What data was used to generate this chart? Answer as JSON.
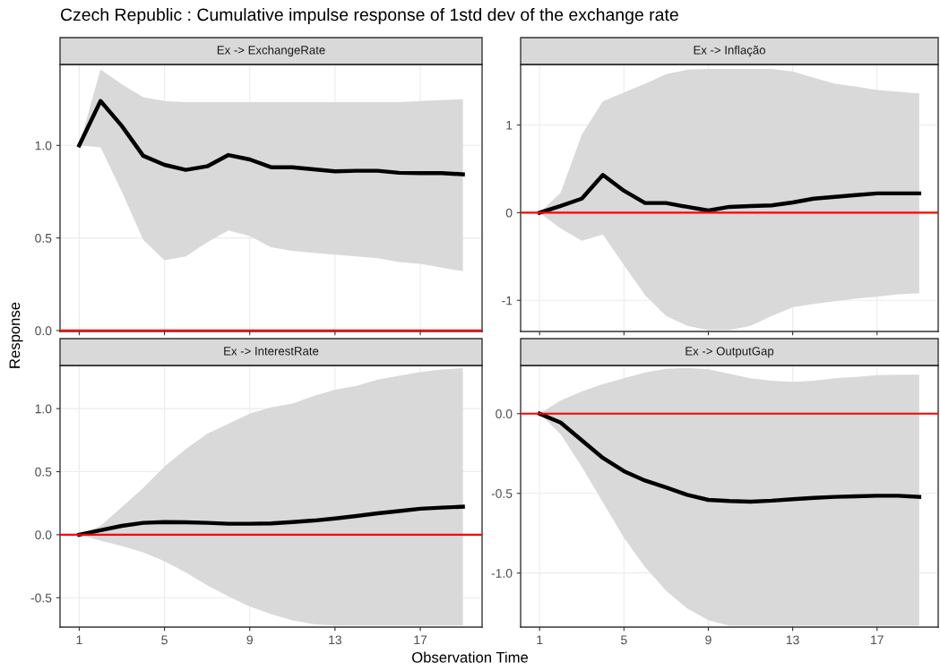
{
  "chart_data": [
    {
      "type": "line",
      "title": "Ex -> ExchangeRate",
      "ylabel": "Response",
      "annotations": [
        "Czech Republic : Cumulative impulse response of 1std dev of the exchange rate"
      ],
      "x": [
        1,
        2,
        3,
        4,
        5,
        6,
        7,
        8,
        9,
        10,
        11,
        12,
        13,
        14,
        15,
        16,
        17,
        18,
        19
      ],
      "xlim": [
        0.1,
        19.9
      ],
      "xticks": [
        1,
        5,
        9,
        13,
        17
      ],
      "ylim": [
        -0.005,
        1.437
      ],
      "yticks": [
        {
          "value": 0,
          "label": "0.0"
        },
        {
          "value": 0.5,
          "label": "0.5"
        },
        {
          "value": 1,
          "label": "1.0"
        }
      ],
      "tick_labels": "y",
      "grid": true,
      "series": [
        {
          "color": "#000000",
          "values": [
            1.0,
            1.24,
            1.105,
            0.944,
            0.895,
            0.868,
            0.887,
            0.948,
            0.924,
            0.882,
            0.882,
            0.871,
            0.86,
            0.863,
            0.863,
            0.852,
            0.85,
            0.85,
            0.844
          ],
          "upper": [
            1.0,
            1.41,
            1.33,
            1.26,
            1.24,
            1.234,
            1.234,
            1.234,
            1.234,
            1.234,
            1.234,
            1.234,
            1.234,
            1.234,
            1.234,
            1.234,
            1.24,
            1.245,
            1.25
          ],
          "lower": [
            1.0,
            0.99,
            0.75,
            0.49,
            0.38,
            0.4,
            0.476,
            0.54,
            0.51,
            0.45,
            0.43,
            0.42,
            0.41,
            0.4,
            0.39,
            0.37,
            0.36,
            0.34,
            0.32
          ]
        }
      ],
      "ref_lines": [
        {
          "axis": "y",
          "value": 0,
          "color": "#ff0000"
        }
      ]
    },
    {
      "type": "line",
      "title": "Ex -> Inflação",
      "x": [
        1,
        2,
        3,
        4,
        5,
        6,
        7,
        8,
        9,
        10,
        11,
        12,
        13,
        14,
        15,
        16,
        17,
        18,
        19
      ],
      "xlim": [
        0.1,
        19.9
      ],
      "xticks": [
        1,
        5,
        9,
        13,
        17
      ],
      "ylim": [
        -1.355,
        1.69
      ],
      "yticks": [
        -1,
        0,
        1
      ],
      "tick_labels": "y",
      "grid": true,
      "series": [
        {
          "color": "#000000",
          "values": [
            0,
            0.076,
            0.16,
            0.43,
            0.25,
            0.11,
            0.11,
            0.066,
            0.024,
            0.066,
            0.076,
            0.083,
            0.117,
            0.16,
            0.18,
            0.2,
            0.22,
            0.22,
            0.22
          ],
          "upper": [
            0,
            0.23,
            0.89,
            1.27,
            1.37,
            1.47,
            1.58,
            1.63,
            1.64,
            1.64,
            1.64,
            1.64,
            1.61,
            1.54,
            1.47,
            1.44,
            1.4,
            1.38,
            1.36
          ],
          "lower": [
            0,
            -0.18,
            -0.32,
            -0.25,
            -0.6,
            -0.94,
            -1.18,
            -1.29,
            -1.34,
            -1.34,
            -1.29,
            -1.18,
            -1.08,
            -1.04,
            -1.01,
            -0.98,
            -0.96,
            -0.93,
            -0.92
          ]
        }
      ],
      "ref_lines": [
        {
          "axis": "y",
          "value": 0,
          "color": "#ff0000"
        }
      ]
    },
    {
      "type": "line",
      "title": "Ex -> InterestRate",
      "xlabel": "Observation Time",
      "x": [
        1,
        2,
        3,
        4,
        5,
        6,
        7,
        8,
        9,
        10,
        11,
        12,
        13,
        14,
        15,
        16,
        17,
        18,
        19
      ],
      "xlim": [
        0.1,
        19.9
      ],
      "xticks": [
        1,
        5,
        9,
        13,
        17
      ],
      "ylim": [
        -0.733,
        1.342
      ],
      "yticks": [
        {
          "value": -0.5,
          "label": "-0.5"
        },
        {
          "value": 0,
          "label": "0.0"
        },
        {
          "value": 0.5,
          "label": "0.5"
        },
        {
          "value": 1,
          "label": "1.0"
        }
      ],
      "grid": true,
      "series": [
        {
          "color": "#000000",
          "values": [
            0,
            0.035,
            0.07,
            0.094,
            0.1,
            0.098,
            0.094,
            0.087,
            0.087,
            0.089,
            0.1,
            0.112,
            0.129,
            0.148,
            0.169,
            0.187,
            0.206,
            0.215,
            0.222
          ],
          "upper": [
            0,
            0.07,
            0.22,
            0.37,
            0.54,
            0.68,
            0.8,
            0.88,
            0.96,
            1.01,
            1.04,
            1.1,
            1.15,
            1.18,
            1.23,
            1.26,
            1.29,
            1.31,
            1.32
          ],
          "lower": [
            0,
            -0.047,
            -0.09,
            -0.14,
            -0.21,
            -0.3,
            -0.4,
            -0.49,
            -0.57,
            -0.63,
            -0.68,
            -0.71,
            -0.72,
            -0.72,
            -0.72,
            -0.72,
            -0.72,
            -0.72,
            -0.72
          ]
        }
      ],
      "ref_lines": [
        {
          "axis": "y",
          "value": 0,
          "color": "#ff0000"
        }
      ]
    },
    {
      "type": "line",
      "title": "Ex -> OutputGap",
      "x": [
        1,
        2,
        3,
        4,
        5,
        6,
        7,
        8,
        9,
        10,
        11,
        12,
        13,
        14,
        15,
        16,
        17,
        18,
        19
      ],
      "xlim": [
        0.1,
        19.9
      ],
      "xticks": [
        1,
        5,
        9,
        13,
        17
      ],
      "ylim": [
        -1.339,
        0.302
      ],
      "yticks": [
        {
          "value": -1,
          "label": "-1.0"
        },
        {
          "value": -0.5,
          "label": "-0.5"
        },
        {
          "value": 0,
          "label": "0.0"
        }
      ],
      "grid": true,
      "series": [
        {
          "color": "#000000",
          "values": [
            0,
            -0.056,
            -0.167,
            -0.278,
            -0.361,
            -0.42,
            -0.463,
            -0.509,
            -0.541,
            -0.548,
            -0.552,
            -0.546,
            -0.537,
            -0.528,
            -0.522,
            -0.519,
            -0.515,
            -0.515,
            -0.522
          ],
          "upper": [
            0,
            0.083,
            0.139,
            0.185,
            0.222,
            0.259,
            0.281,
            0.287,
            0.278,
            0.25,
            0.222,
            0.207,
            0.2,
            0.207,
            0.222,
            0.231,
            0.241,
            0.244,
            0.244
          ],
          "lower": [
            0,
            -0.13,
            -0.333,
            -0.556,
            -0.778,
            -0.963,
            -1.111,
            -1.222,
            -1.296,
            -1.33,
            -1.33,
            -1.33,
            -1.33,
            -1.33,
            -1.33,
            -1.33,
            -1.33,
            -1.33,
            -1.33
          ]
        }
      ],
      "ref_lines": [
        {
          "axis": "y",
          "value": 0,
          "color": "#ff0000"
        }
      ]
    }
  ]
}
